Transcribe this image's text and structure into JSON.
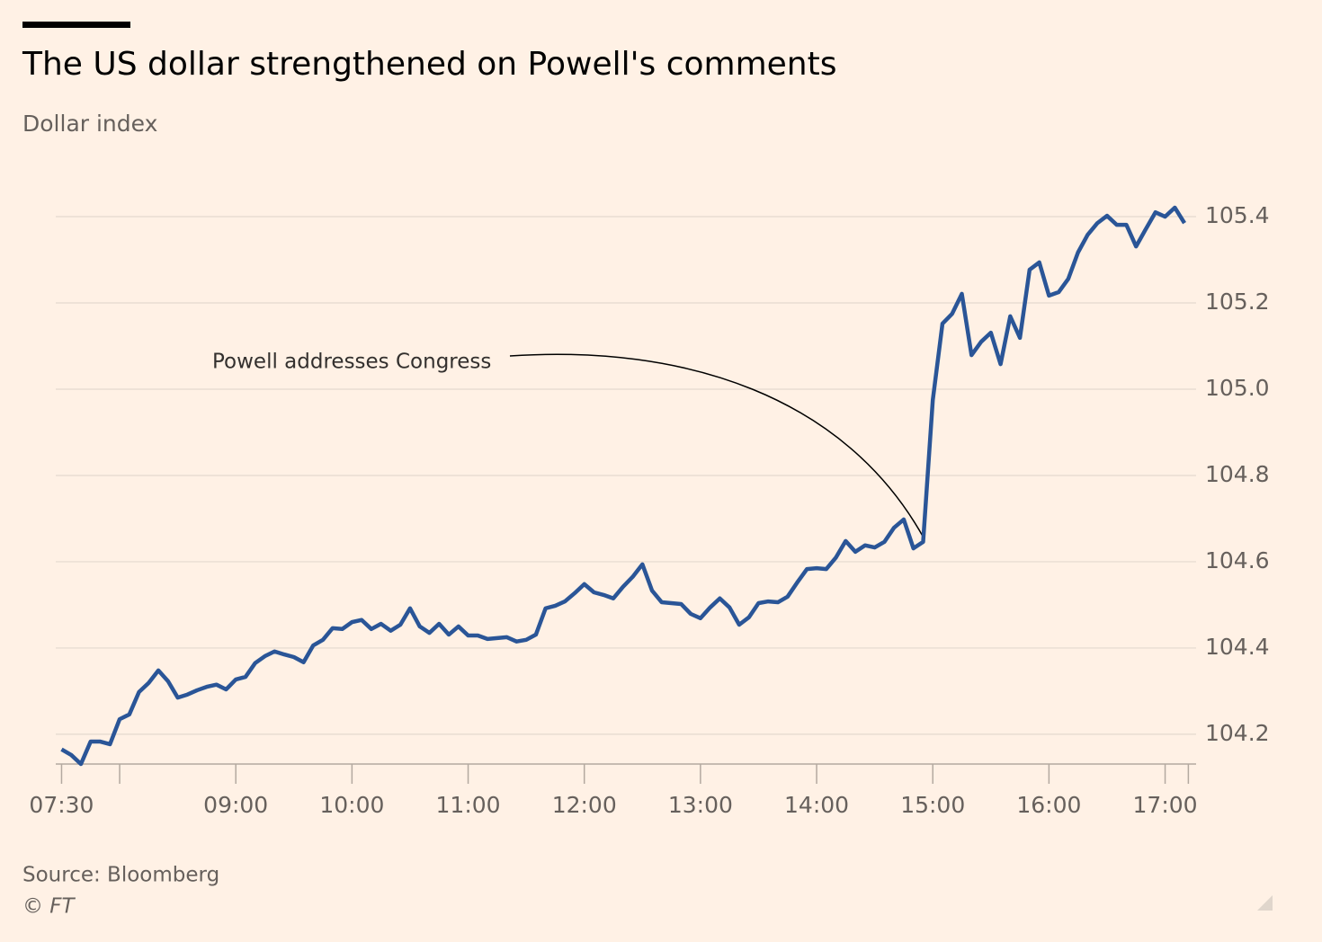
{
  "chart_data": {
    "type": "line",
    "title": "The US dollar strengthened on Powell's comments",
    "subtitle": "Dollar index",
    "annotation": "Powell addresses Congress",
    "source": "Source: Bloomberg",
    "copyright": "© FT",
    "x": [
      "07:30",
      "07:35",
      "07:40",
      "07:45",
      "07:50",
      "07:55",
      "08:00",
      "08:05",
      "08:10",
      "08:15",
      "08:20",
      "08:25",
      "08:30",
      "08:35",
      "08:40",
      "08:45",
      "08:50",
      "08:55",
      "09:00",
      "09:05",
      "09:10",
      "09:15",
      "09:20",
      "09:25",
      "09:30",
      "09:35",
      "09:40",
      "09:45",
      "09:50",
      "09:55",
      "10:00",
      "10:05",
      "10:10",
      "10:15",
      "10:20",
      "10:25",
      "10:30",
      "10:35",
      "10:40",
      "10:45",
      "10:50",
      "10:55",
      "11:00",
      "11:05",
      "11:10",
      "11:15",
      "11:20",
      "11:25",
      "11:30",
      "11:35",
      "11:40",
      "11:45",
      "11:50",
      "11:55",
      "12:00",
      "12:05",
      "12:10",
      "12:15",
      "12:20",
      "12:25",
      "12:30",
      "12:35",
      "12:40",
      "12:45",
      "12:50",
      "12:55",
      "13:00",
      "13:05",
      "13:10",
      "13:15",
      "13:20",
      "13:25",
      "13:30",
      "13:35",
      "13:40",
      "13:45",
      "13:50",
      "13:55",
      "14:00",
      "14:05",
      "14:10",
      "14:15",
      "14:20",
      "14:25",
      "14:30",
      "14:35",
      "14:40",
      "14:45",
      "14:50",
      "14:55",
      "15:00",
      "15:05",
      "15:10",
      "15:15",
      "15:20",
      "15:25",
      "15:30",
      "15:35",
      "15:40",
      "15:45",
      "15:50",
      "15:55",
      "16:00",
      "16:05",
      "16:10",
      "16:15",
      "16:20",
      "16:25",
      "16:30",
      "16:35",
      "16:40",
      "16:45",
      "16:50",
      "16:55",
      "17:00",
      "17:05",
      "17:10"
    ],
    "series": [
      {
        "name": "Dollar index",
        "color": "#2a5597",
        "values": [
          104.165,
          104.152,
          104.131,
          104.183,
          104.183,
          104.177,
          104.235,
          104.246,
          104.298,
          104.319,
          104.348,
          104.323,
          104.285,
          104.292,
          104.302,
          104.31,
          104.315,
          104.304,
          104.327,
          104.333,
          104.365,
          104.381,
          104.392,
          104.385,
          104.379,
          104.367,
          104.406,
          104.419,
          104.446,
          104.444,
          104.46,
          104.465,
          104.444,
          104.456,
          104.44,
          104.454,
          104.492,
          104.45,
          104.435,
          104.456,
          104.431,
          104.45,
          104.429,
          104.429,
          104.421,
          104.423,
          104.425,
          104.415,
          104.419,
          104.431,
          104.492,
          104.498,
          104.508,
          104.527,
          104.548,
          104.529,
          104.523,
          104.515,
          104.542,
          104.565,
          104.594,
          104.533,
          104.506,
          104.504,
          104.502,
          104.479,
          104.469,
          104.494,
          104.515,
          104.494,
          104.454,
          104.471,
          104.504,
          104.508,
          104.506,
          104.519,
          104.552,
          104.583,
          104.585,
          104.583,
          104.61,
          104.648,
          104.623,
          104.638,
          104.633,
          104.646,
          104.679,
          104.698,
          104.631,
          104.646,
          104.975,
          105.152,
          105.175,
          105.221,
          105.079,
          105.11,
          105.131,
          105.058,
          105.169,
          105.119,
          105.277,
          105.294,
          105.217,
          105.225,
          105.256,
          105.317,
          105.358,
          105.385,
          105.402,
          105.381,
          105.381,
          105.331,
          105.371,
          105.41,
          105.4,
          105.421,
          105.385
        ]
      }
    ],
    "xlim": [
      "07:27",
      "17:16"
    ],
    "xticks": [
      "07:30",
      {
        "value": "08:00",
        "label": null
      },
      "09:00",
      "10:00",
      "11:00",
      "12:00",
      "13:00",
      "14:00",
      "15:00",
      "16:00",
      "17:00",
      {
        "value": "17:12",
        "label": null
      }
    ],
    "ylim": [
      104.131,
      105.423
    ],
    "yticks": [
      104.2,
      104.4,
      104.6,
      104.8,
      {
        "value": 105,
        "label": "105.0"
      },
      105.2,
      105.4
    ],
    "grid": true
  }
}
